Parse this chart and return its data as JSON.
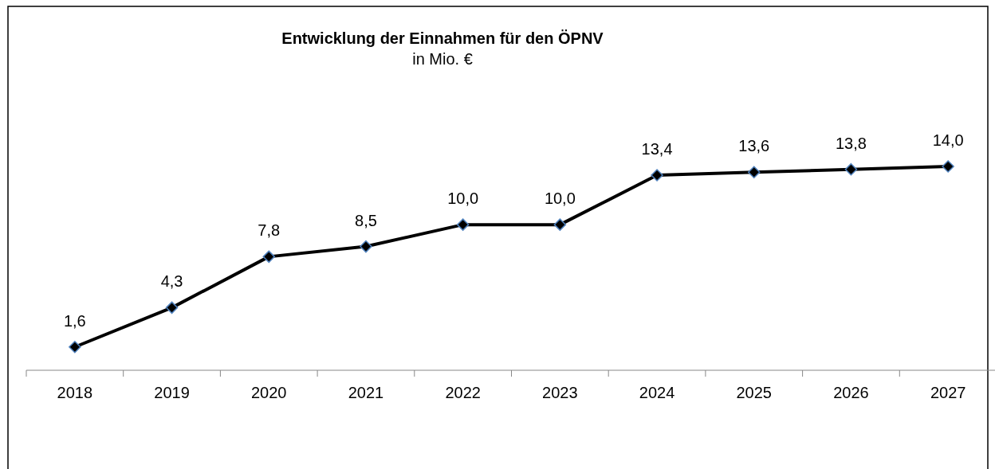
{
  "chart_data": {
    "type": "line",
    "title": "Entwicklung der Einnahmen für den ÖPNV",
    "subtitle": "in Mio. €",
    "categories": [
      "2018",
      "2019",
      "2020",
      "2021",
      "2022",
      "2023",
      "2024",
      "2025",
      "2026",
      "2027"
    ],
    "series": [
      {
        "color": "#000000",
        "values": [
          1.6,
          4.3,
          7.8,
          8.5,
          10.0,
          10.0,
          13.4,
          13.6,
          13.8,
          14.0
        ],
        "value_labels": [
          "1,6",
          "4,3",
          "7,8",
          "8,5",
          "10,0",
          "10,0",
          "13,4",
          "13,6",
          "13,8",
          "14,0"
        ]
      }
    ],
    "marker": "diamond"
  }
}
